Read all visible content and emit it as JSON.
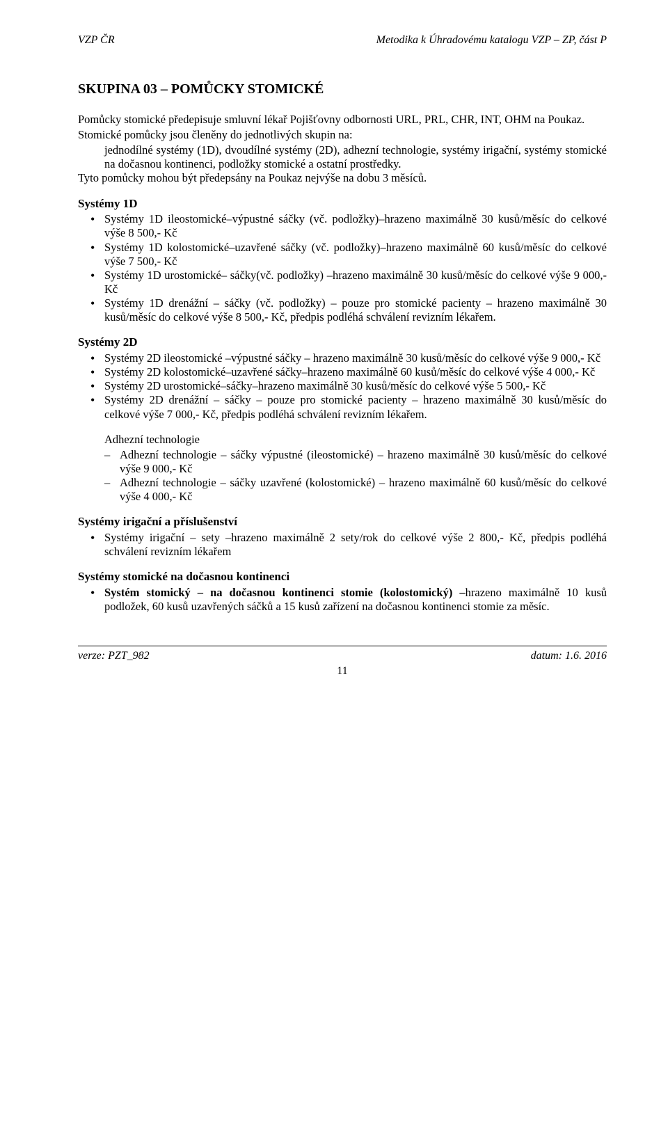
{
  "header": {
    "left": "VZP ČR",
    "right": "Metodika k Úhradovému katalogu VZP – ZP, část P"
  },
  "title": "SKUPINA 03 – POMŮCKY STOMICKÉ",
  "intro1": "Pomůcky stomické předepisuje smluvní lékař Pojišťovny odbornosti URL, PRL, CHR, INT, OHM na Poukaz.",
  "intro2": "Stomické pomůcky jsou členěny do jednotlivých skupin na:",
  "intro3": "jednodílné systémy (1D), dvoudílné systémy (2D), adhezní technologie, systémy irigační, systémy stomické na dočasnou kontinenci, podložky stomické a ostatní prostředky.",
  "intro4": "Tyto pomůcky mohou být předepsány na Poukaz nejvýše na dobu 3 měsíců.",
  "s1d": {
    "heading": "Systémy 1D",
    "items": [
      "Systémy 1D ileostomické–výpustné sáčky (vč. podložky)–hrazeno maximálně 30 kusů/měsíc do celkové výše 8 500,- Kč",
      "Systémy 1D kolostomické–uzavřené sáčky (vč. podložky)–hrazeno maximálně 60 kusů/měsíc do celkové výše 7 500,- Kč",
      "Systémy 1D urostomické– sáčky(vč. podložky) –hrazeno maximálně 30 kusů/měsíc do celkové výše 9 000,- Kč",
      "Systémy 1D drenážní – sáčky (vč. podložky) – pouze pro stomické pacienty – hrazeno maximálně 30 kusů/měsíc do celkové výše 8 500,- Kč, předpis podléhá schválení revizním lékařem."
    ]
  },
  "s2d": {
    "heading": "Systémy 2D",
    "items": [
      "Systémy 2D ileostomické –výpustné sáčky – hrazeno maximálně 30 kusů/měsíc do celkové výše 9 000,- Kč",
      "Systémy 2D kolostomické–uzavřené sáčky–hrazeno maximálně 60 kusů/měsíc do celkové výše 4 000,- Kč",
      "Systémy 2D urostomické–sáčky–hrazeno maximálně 30 kusů/měsíc do celkové výše 5 500,- Kč",
      "Systémy 2D drenážní – sáčky – pouze pro stomické pacienty – hrazeno maximálně 30 kusů/měsíc do celkové výše 7 000,- Kč, předpis podléhá schválení revizním lékařem."
    ]
  },
  "adhez": {
    "heading": "Adhezní technologie",
    "items": [
      "Adhezní technologie – sáčky výpustné (ileostomické) – hrazeno maximálně 30 kusů/měsíc do celkové výše 9 000,- Kč",
      "Adhezní technologie – sáčky uzavřené (kolostomické) – hrazeno maximálně 60 kusů/měsíc do celkové výše 4 000,- Kč"
    ]
  },
  "irig": {
    "heading": "Systémy irigační a příslušenství",
    "items": [
      "Systémy irigační – sety –hrazeno maximálně 2 sety/rok do celkové výše 2 800,- Kč, předpis podléhá schválení revizním lékařem"
    ]
  },
  "docas": {
    "heading": "Systémy stomické na dočasnou kontinenci",
    "item_bold": "Systém stomický – na dočasnou kontinenci stomie (kolostomický) –",
    "item_rest": "hrazeno maximálně 10 kusů podložek, 60 kusů uzavřených sáčků a 15 kusů zařízení na dočasnou kontinenci stomie za měsíc."
  },
  "footer": {
    "left": "verze: PZT_982",
    "right": "datum: 1.6. 2016",
    "page": "11"
  }
}
